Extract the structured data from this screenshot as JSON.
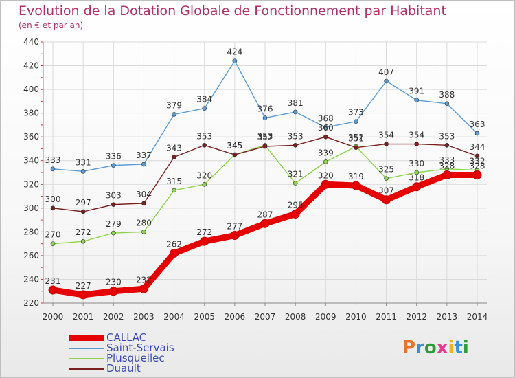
{
  "header": {
    "title": "Evolution de la Dotation Globale de Fonctionnement par Habitant",
    "subtitle": "(en € et par an)"
  },
  "logo": {
    "text": "Proxiti",
    "colors": [
      "#e8732a",
      "#3a8fd9",
      "#2e9b3a",
      "#e33b8e",
      "#f0b21e",
      "#3a8fd9",
      "#2e9b3a"
    ]
  },
  "chart_data": {
    "type": "line",
    "title": "Evolution de la Dotation Globale de Fonctionnement par Habitant",
    "subtitle": "(en € et par an)",
    "x": [
      "2000",
      "2001",
      "2002",
      "2003",
      "2004",
      "2005",
      "2006",
      "2007",
      "2008",
      "2009",
      "2010",
      "2011",
      "2012",
      "2013",
      "2014"
    ],
    "ylim": [
      220,
      440
    ],
    "yticks": [
      220,
      240,
      260,
      280,
      300,
      320,
      340,
      360,
      380,
      400,
      420,
      440
    ],
    "grid": true,
    "legend_position": "bottom-left",
    "series": [
      {
        "name": "CALLAC",
        "color": "#e60000",
        "values": [
          231,
          227,
          230,
          232,
          262,
          272,
          277,
          287,
          295,
          320,
          319,
          307,
          318,
          328,
          328
        ]
      },
      {
        "name": "Saint-Servais",
        "color": "#5b9bd5",
        "values": [
          333,
          331,
          336,
          337,
          379,
          384,
          424,
          376,
          381,
          368,
          373,
          407,
          391,
          388,
          363
        ]
      },
      {
        "name": "Plusquellec",
        "color": "#8ed44a",
        "values": [
          270,
          272,
          279,
          280,
          315,
          320,
          345,
          353,
          321,
          339,
          352,
          325,
          330,
          333,
          332
        ]
      },
      {
        "name": "Duault",
        "color": "#7a1f1f",
        "values": [
          300,
          297,
          303,
          304,
          343,
          353,
          345,
          352,
          353,
          360,
          351,
          354,
          354,
          353,
          344
        ]
      }
    ]
  }
}
